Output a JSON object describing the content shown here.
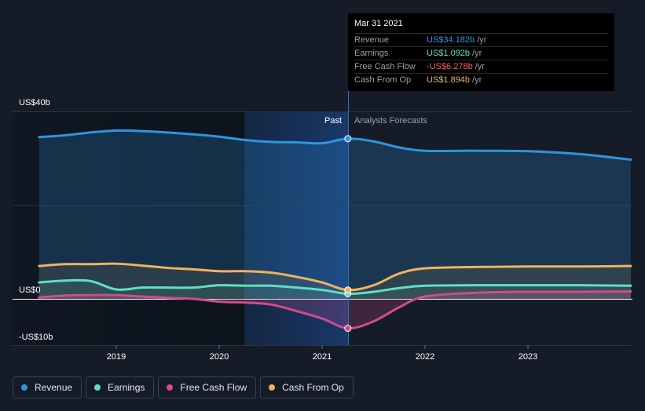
{
  "tooltip": {
    "date": "Mar 31 2021",
    "rows": [
      {
        "label": "Revenue",
        "value": "US$34.182b",
        "unit": "/yr",
        "color": "#2d95e3"
      },
      {
        "label": "Earnings",
        "value": "US$1.092b",
        "unit": "/yr",
        "color": "#5ce0c6"
      },
      {
        "label": "Free Cash Flow",
        "value": "-US$6.278b",
        "unit": "/yr",
        "color": "#ff5a5a"
      },
      {
        "label": "Cash From Op",
        "value": "US$1.894b",
        "unit": "/yr",
        "color": "#f0b35c"
      }
    ]
  },
  "period_labels": {
    "past": "Past",
    "forecast": "Analysts Forecasts"
  },
  "legend": [
    {
      "label": "Revenue",
      "color": "#2d95e3"
    },
    {
      "label": "Earnings",
      "color": "#5ce0c6"
    },
    {
      "label": "Free Cash Flow",
      "color": "#d04c8c"
    },
    {
      "label": "Cash From Op",
      "color": "#f0b35c"
    }
  ],
  "chart_data": {
    "type": "line",
    "x_tick_labels": [
      "2019",
      "2020",
      "2021",
      "2022",
      "2023"
    ],
    "y_tick_labels": [
      "US$40b",
      "US$0",
      "-US$10b"
    ],
    "ylim": [
      -10,
      40
    ],
    "xlim": [
      2018.25,
      2024
    ],
    "past_end": 2021.25,
    "series": [
      {
        "name": "Revenue",
        "color": "#2d95e3",
        "points": [
          [
            2018.25,
            34.5
          ],
          [
            2018.5,
            34.9
          ],
          [
            2018.75,
            35.5
          ],
          [
            2019.0,
            35.9
          ],
          [
            2019.25,
            35.8
          ],
          [
            2019.5,
            35.5
          ],
          [
            2019.75,
            35.1
          ],
          [
            2020.0,
            34.6
          ],
          [
            2020.25,
            33.9
          ],
          [
            2020.5,
            33.5
          ],
          [
            2020.75,
            33.4
          ],
          [
            2021.0,
            33.2
          ],
          [
            2021.25,
            34.18
          ],
          [
            2021.5,
            33.6
          ],
          [
            2021.75,
            32.3
          ],
          [
            2022.0,
            31.6
          ],
          [
            2022.5,
            31.6
          ],
          [
            2023.0,
            31.5
          ],
          [
            2023.5,
            30.9
          ],
          [
            2024.0,
            29.7
          ]
        ]
      },
      {
        "name": "Earnings",
        "color": "#5ce0c6",
        "points": [
          [
            2018.25,
            3.5
          ],
          [
            2018.5,
            3.9
          ],
          [
            2018.75,
            3.8
          ],
          [
            2019.0,
            2.0
          ],
          [
            2019.25,
            2.4
          ],
          [
            2019.5,
            2.4
          ],
          [
            2019.75,
            2.4
          ],
          [
            2020.0,
            2.9
          ],
          [
            2020.25,
            2.8
          ],
          [
            2020.5,
            2.8
          ],
          [
            2020.75,
            2.4
          ],
          [
            2021.0,
            1.9
          ],
          [
            2021.25,
            1.09
          ],
          [
            2021.5,
            1.5
          ],
          [
            2021.75,
            2.3
          ],
          [
            2022.0,
            2.8
          ],
          [
            2022.5,
            2.9
          ],
          [
            2023.0,
            2.9
          ],
          [
            2023.5,
            2.9
          ],
          [
            2024.0,
            2.8
          ]
        ]
      },
      {
        "name": "Free Cash Flow",
        "color": "#d04c8c",
        "points": [
          [
            2018.25,
            0.3
          ],
          [
            2018.5,
            0.7
          ],
          [
            2018.75,
            0.8
          ],
          [
            2019.0,
            0.8
          ],
          [
            2019.25,
            0.5
          ],
          [
            2019.5,
            0.2
          ],
          [
            2019.75,
            0.0
          ],
          [
            2020.0,
            -0.6
          ],
          [
            2020.25,
            -0.8
          ],
          [
            2020.5,
            -1.2
          ],
          [
            2020.75,
            -2.6
          ],
          [
            2021.0,
            -4.2
          ],
          [
            2021.25,
            -6.28
          ],
          [
            2021.5,
            -4.8
          ],
          [
            2021.75,
            -1.8
          ],
          [
            2022.0,
            0.5
          ],
          [
            2022.5,
            1.3
          ],
          [
            2023.0,
            1.5
          ],
          [
            2023.5,
            1.5
          ],
          [
            2024.0,
            1.6
          ]
        ]
      },
      {
        "name": "Cash From Op",
        "color": "#f0b35c",
        "points": [
          [
            2018.25,
            7.0
          ],
          [
            2018.5,
            7.4
          ],
          [
            2018.75,
            7.4
          ],
          [
            2019.0,
            7.5
          ],
          [
            2019.25,
            7.1
          ],
          [
            2019.5,
            6.6
          ],
          [
            2019.75,
            6.3
          ],
          [
            2020.0,
            5.9
          ],
          [
            2020.25,
            5.9
          ],
          [
            2020.5,
            5.6
          ],
          [
            2020.75,
            4.7
          ],
          [
            2021.0,
            3.5
          ],
          [
            2021.25,
            1.89
          ],
          [
            2021.5,
            2.9
          ],
          [
            2021.75,
            5.4
          ],
          [
            2022.0,
            6.5
          ],
          [
            2022.5,
            6.8
          ],
          [
            2023.0,
            6.9
          ],
          [
            2023.5,
            6.9
          ],
          [
            2024.0,
            7.0
          ]
        ]
      }
    ]
  }
}
